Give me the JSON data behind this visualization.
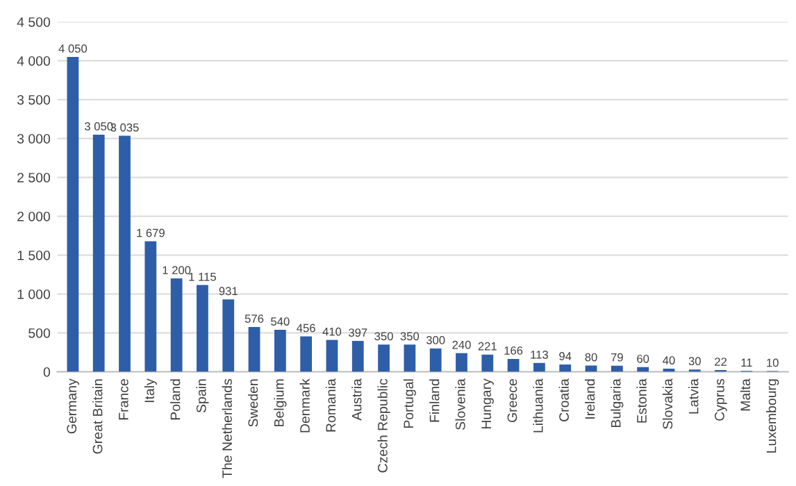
{
  "chart_data": {
    "type": "bar",
    "categories": [
      "Germany",
      "Great Britain",
      "France",
      "Italy",
      "Poland",
      "Spain",
      "The Netherlands",
      "Sweden",
      "Belgium",
      "Denmark",
      "Romania",
      "Austria",
      "Czech Republic",
      "Portugal",
      "Finland",
      "Slovenia",
      "Hungary",
      "Greece",
      "Lithuania",
      "Croatia",
      "Ireland",
      "Bulgaria",
      "Estonia",
      "Slovakia",
      "Latvia",
      "Cyprus",
      "Malta",
      "Luxembourg"
    ],
    "values": [
      4050,
      3050,
      3035,
      1679,
      1200,
      1115,
      931,
      576,
      540,
      456,
      410,
      397,
      350,
      350,
      300,
      240,
      221,
      166,
      113,
      94,
      80,
      79,
      60,
      40,
      30,
      22,
      11,
      10
    ],
    "value_labels": [
      "4 050",
      "3 050",
      "3 035",
      "1 679",
      "1 200",
      "1 115",
      "931",
      "576",
      "540",
      "456",
      "410",
      "397",
      "350",
      "350",
      "300",
      "240",
      "221",
      "166",
      "113",
      "94",
      "80",
      "79",
      "60",
      "40",
      "30",
      "22",
      "11",
      "10"
    ],
    "color": "#2e5ea8",
    "ylim": [
      0,
      4500
    ],
    "yticks": [
      0,
      {
        "value": 500,
        "label": "500"
      },
      {
        "value": 1000,
        "label": "1 000"
      },
      {
        "value": 1500,
        "label": "1 500"
      },
      {
        "value": 2000,
        "label": "2 000"
      },
      {
        "value": 2500,
        "label": "2 500"
      },
      {
        "value": 3000,
        "label": "3 000"
      },
      {
        "value": 3500,
        "label": "3 500"
      },
      {
        "value": 4000,
        "label": "4 000"
      },
      {
        "value": 4500,
        "label": "4 500"
      }
    ],
    "grid": "y",
    "legend": false
  }
}
